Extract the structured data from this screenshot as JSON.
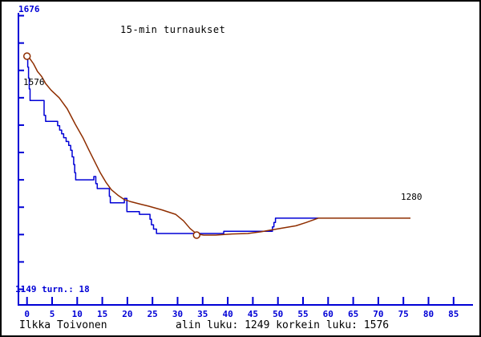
{
  "header": {
    "title": "15-min turnaukset"
  },
  "labels": {
    "y_axis_max": "1676",
    "y_axis_min_info": "1149 turn.: 18",
    "start_value": "1576",
    "end_value": "1280"
  },
  "footer": {
    "player": "Ilkka Toivonen",
    "stats": "alin luku: 1249 korkein luku: 1576"
  },
  "colors": {
    "axis_blue": "#0000d6",
    "line_blue": "#0000d6",
    "line_brown": "#8f2e00",
    "text_black": "#000000",
    "background": "#ffffff"
  },
  "chart_data": {
    "type": "line",
    "title": "15-min turnaukset",
    "xlabel": "",
    "ylabel": "",
    "x_ticks": [
      0,
      5,
      10,
      15,
      20,
      25,
      30,
      35,
      40,
      45,
      50,
      55,
      60,
      65,
      70,
      75,
      80,
      85
    ],
    "y_ticks": [
      1650,
      1600,
      1550,
      1500,
      1450,
      1400,
      1350,
      1300,
      1250,
      1200,
      1150
    ],
    "y_axis_top_label": 1676,
    "y_axis_bottom_label": 1149,
    "tournaments_count": 18,
    "min_rating": 1249,
    "max_rating": 1576,
    "final_rating": 1280,
    "grid": false,
    "legend": null,
    "series": [
      {
        "name": "rating-per-game-step-line",
        "color": "#0000d6",
        "points": [
          [
            0,
            1576
          ],
          [
            0.15,
            1576
          ],
          [
            0.15,
            1556
          ],
          [
            0.3,
            1556
          ],
          [
            0.3,
            1536
          ],
          [
            0.45,
            1536
          ],
          [
            0.45,
            1516
          ],
          [
            0.6,
            1516
          ],
          [
            0.6,
            1495
          ],
          [
            3.4,
            1495
          ],
          [
            3.4,
            1468
          ],
          [
            3.7,
            1468
          ],
          [
            3.7,
            1457
          ],
          [
            5.8,
            1457
          ],
          [
            6.1,
            1457
          ],
          [
            6.1,
            1449
          ],
          [
            6.5,
            1449
          ],
          [
            6.5,
            1441
          ],
          [
            6.9,
            1441
          ],
          [
            6.9,
            1434
          ],
          [
            7.3,
            1434
          ],
          [
            7.3,
            1427
          ],
          [
            7.8,
            1427
          ],
          [
            7.8,
            1420
          ],
          [
            8.3,
            1420
          ],
          [
            8.3,
            1413
          ],
          [
            8.7,
            1413
          ],
          [
            8.7,
            1404
          ],
          [
            9.0,
            1404
          ],
          [
            9.0,
            1392
          ],
          [
            9.3,
            1392
          ],
          [
            9.3,
            1378
          ],
          [
            9.5,
            1378
          ],
          [
            9.5,
            1363
          ],
          [
            9.7,
            1363
          ],
          [
            9.7,
            1350
          ],
          [
            13.3,
            1350
          ],
          [
            13.3,
            1356
          ],
          [
            13.7,
            1356
          ],
          [
            13.7,
            1343
          ],
          [
            14.0,
            1343
          ],
          [
            14.0,
            1334
          ],
          [
            16.4,
            1334
          ],
          [
            16.4,
            1320
          ],
          [
            16.6,
            1320
          ],
          [
            16.6,
            1308
          ],
          [
            19.4,
            1308
          ],
          [
            19.4,
            1316
          ],
          [
            19.9,
            1316
          ],
          [
            19.9,
            1292
          ],
          [
            22.4,
            1292
          ],
          [
            22.4,
            1287
          ],
          [
            24.5,
            1287
          ],
          [
            24.5,
            1278
          ],
          [
            24.8,
            1278
          ],
          [
            24.8,
            1268
          ],
          [
            25.2,
            1268
          ],
          [
            25.2,
            1260
          ],
          [
            25.8,
            1260
          ],
          [
            25.8,
            1252
          ],
          [
            39.2,
            1252
          ],
          [
            39.2,
            1256
          ],
          [
            46.6,
            1256
          ],
          [
            48.9,
            1256
          ],
          [
            48.9,
            1264
          ],
          [
            49.2,
            1264
          ],
          [
            49.2,
            1272
          ],
          [
            49.5,
            1272
          ],
          [
            49.5,
            1280
          ],
          [
            58,
            1280
          ]
        ]
      },
      {
        "name": "rating-smoothed-line",
        "color": "#8f2e00",
        "points": [
          [
            0,
            1576
          ],
          [
            0.6,
            1571
          ],
          [
            1.3,
            1562
          ],
          [
            2.1,
            1548
          ],
          [
            2.9,
            1539
          ],
          [
            3.7,
            1526
          ],
          [
            4.8,
            1514
          ],
          [
            6.4,
            1500
          ],
          [
            8.0,
            1480
          ],
          [
            9.6,
            1452
          ],
          [
            11.2,
            1426
          ],
          [
            12.3,
            1405
          ],
          [
            13.5,
            1383
          ],
          [
            14.6,
            1363
          ],
          [
            15.7,
            1346
          ],
          [
            16.8,
            1332
          ],
          [
            18.1,
            1322
          ],
          [
            19.4,
            1314
          ],
          [
            20.7,
            1310
          ],
          [
            22.4,
            1306
          ],
          [
            24.2,
            1302
          ],
          [
            26.9,
            1295
          ],
          [
            29.6,
            1287
          ],
          [
            31.2,
            1275
          ],
          [
            32.5,
            1261
          ],
          [
            33.8,
            1251
          ],
          [
            35.2,
            1249
          ],
          [
            37.6,
            1249
          ],
          [
            40.8,
            1251
          ],
          [
            44.0,
            1252
          ],
          [
            46.6,
            1255
          ],
          [
            50.4,
            1261
          ],
          [
            53.6,
            1266
          ],
          [
            55.6,
            1272
          ],
          [
            58.0,
            1280
          ],
          [
            76.4,
            1280
          ]
        ],
        "markers": [
          [
            0,
            1576
          ],
          [
            33.8,
            1249
          ]
        ]
      }
    ]
  }
}
